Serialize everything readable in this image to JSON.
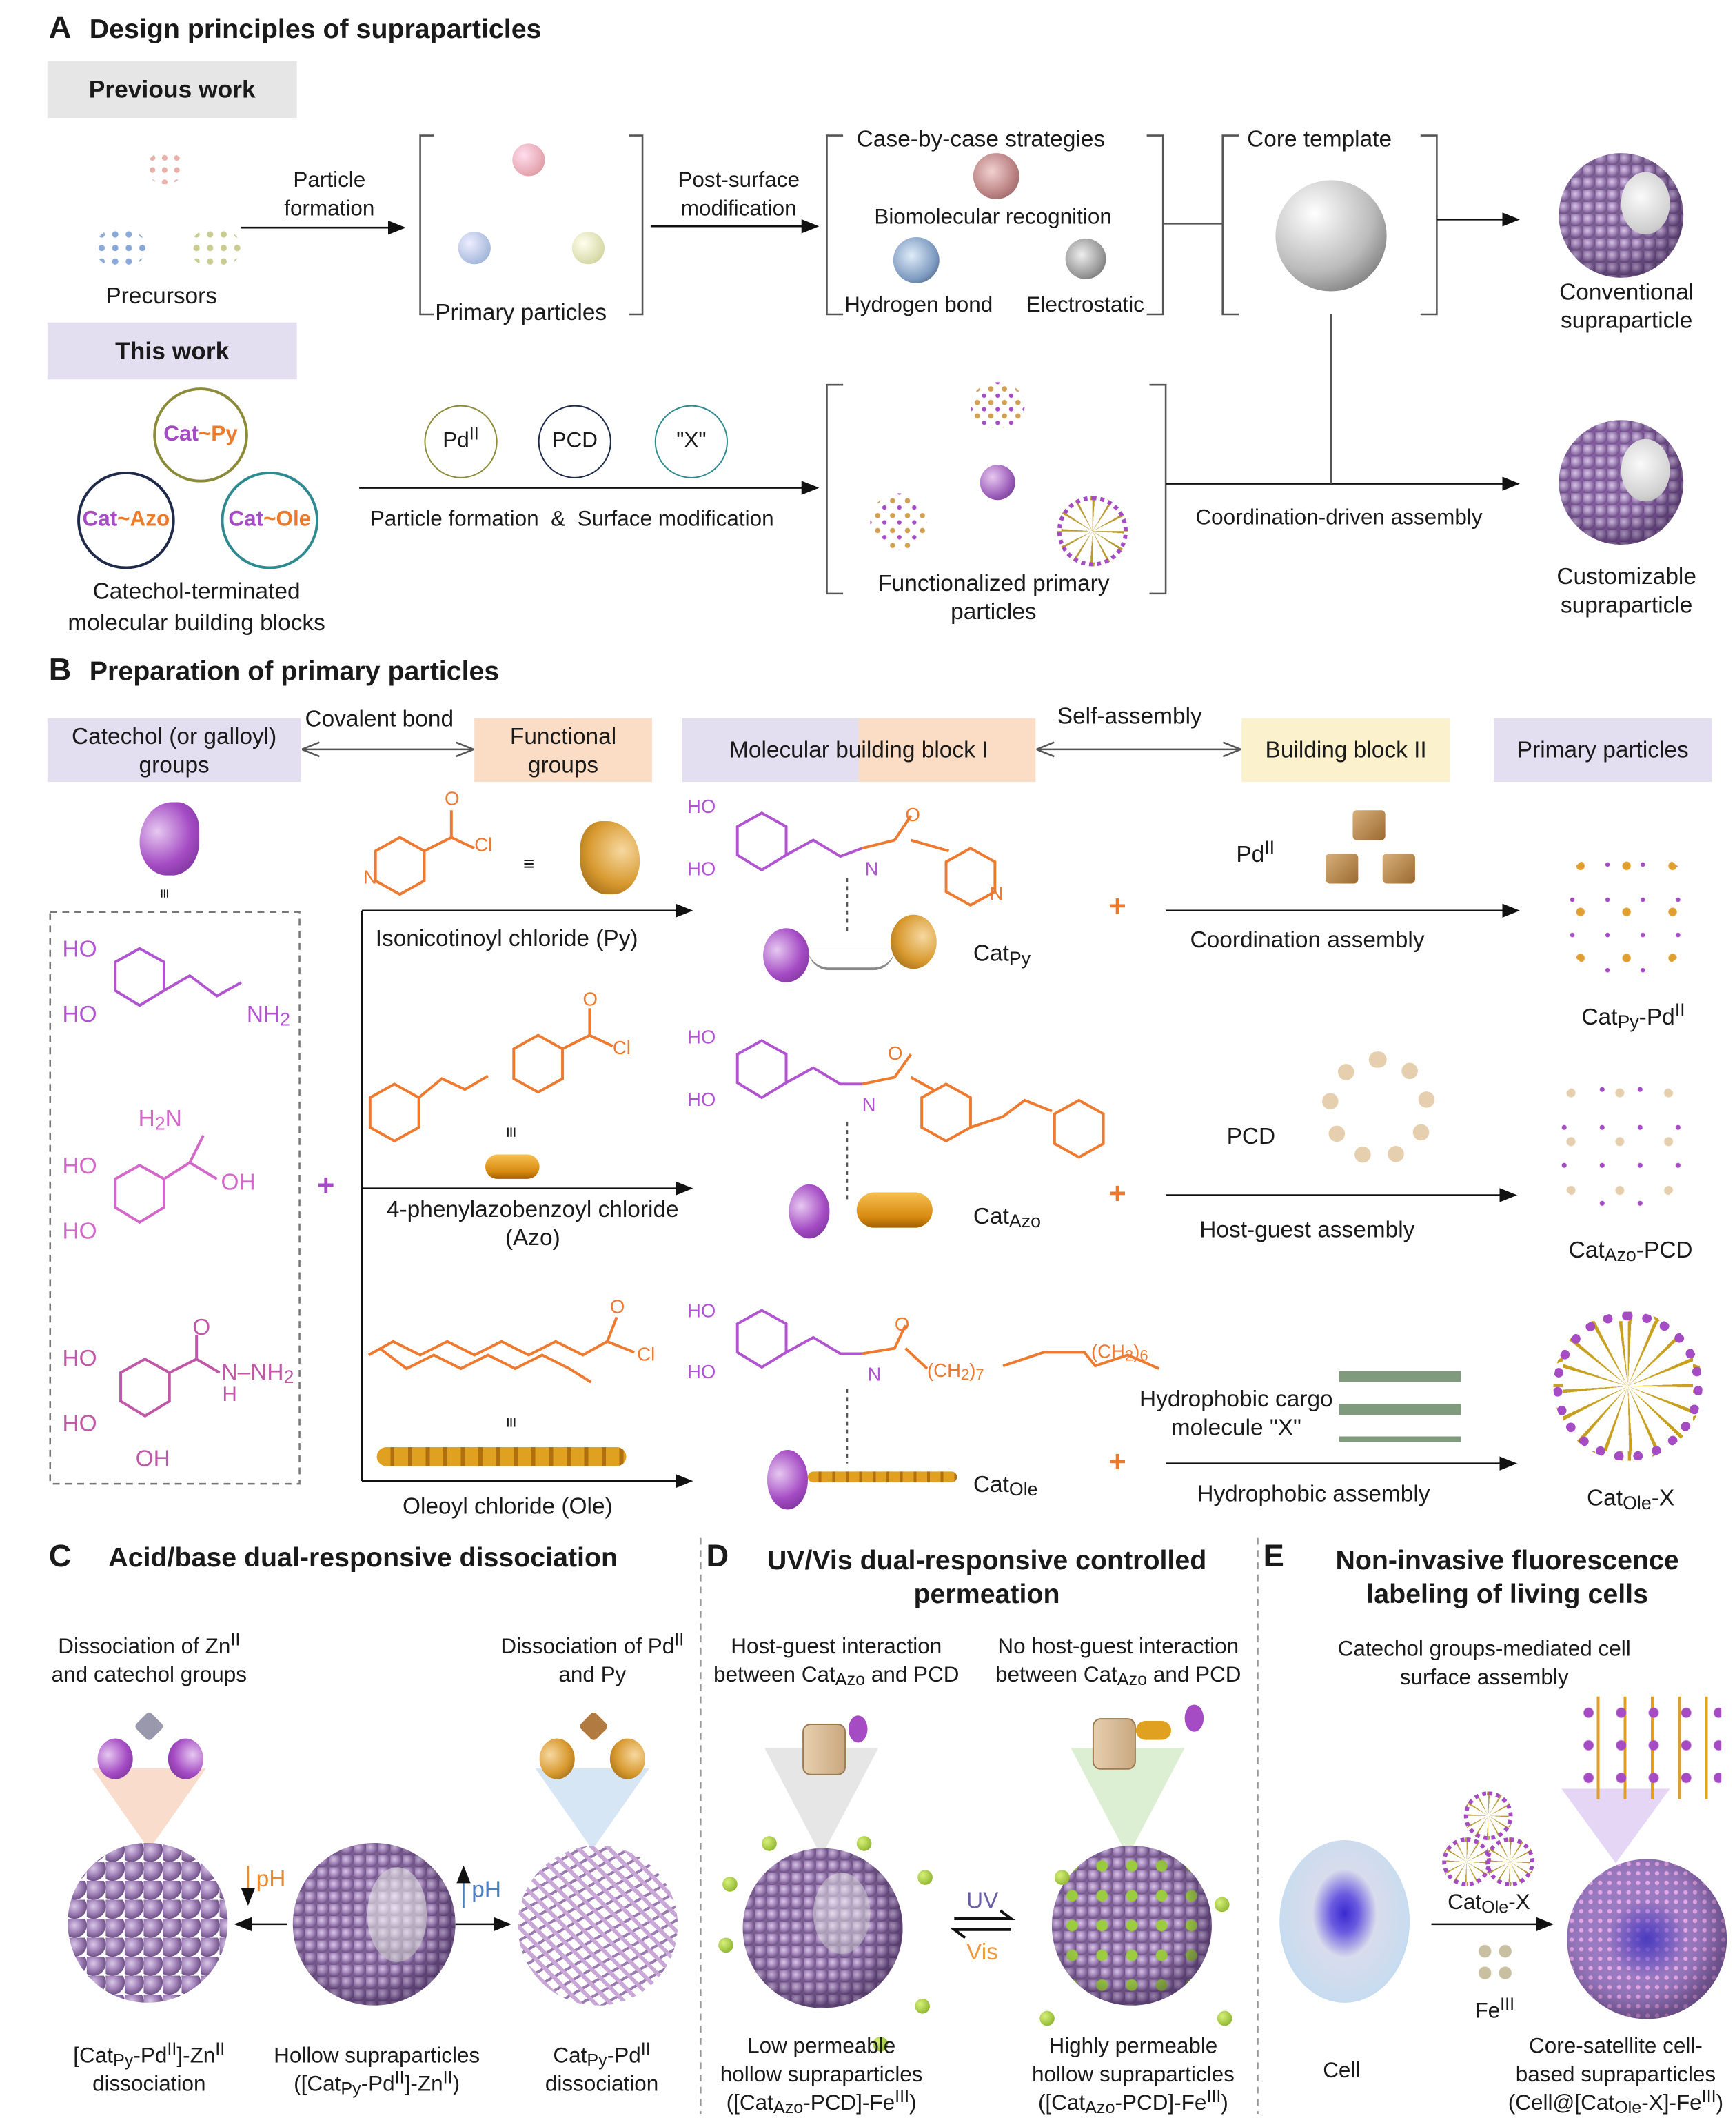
{
  "colors": {
    "purple": "#a54cc4",
    "orange": "#ec7a2c",
    "lavender": "#e3dff0",
    "peach": "#fbdcc4",
    "cream": "#fbf1cc",
    "gray_box": "#e6e6e6",
    "olive": "#8b8b3a",
    "navy": "#1f2a4a",
    "teal": "#2f8a8f",
    "uv": "#6b5ea8",
    "vis": "#ec9a40",
    "ph_down": "#ec8a30",
    "ph_up": "#4a7fc1"
  },
  "panelA": {
    "letter": "A",
    "title": "Design principles of supraparticles",
    "previous_work": "Previous work",
    "this_work": "This work",
    "precursors": "Precursors",
    "particle_formation": [
      "Particle",
      "formation"
    ],
    "primary_particles": "Primary particles",
    "post_surface": [
      "Post-surface",
      "modification"
    ],
    "case_by_case": "Case-by-case strategies",
    "biomolecular": "Biomolecular recognition",
    "hydrogen_bond": "Hydrogen bond",
    "electrostatic": "Electrostatic",
    "core_template": "Core template",
    "conventional": [
      "Conventional",
      "supraparticle"
    ],
    "blocks": {
      "py": [
        "Cat",
        "~",
        "Py"
      ],
      "azo": [
        "Cat",
        "~",
        "Azo"
      ],
      "ole": [
        "Cat",
        "~",
        "Ole"
      ]
    },
    "block_caption": [
      "Catechol-terminated",
      "molecular building blocks"
    ],
    "reagents": [
      "Pd^{II}",
      "PCD",
      "\"X\""
    ],
    "formation_modification": "Particle formation  &  Surface modification",
    "functionalized": [
      "Functionalized primary",
      "particles"
    ],
    "coordination_driven": "Coordination-driven assembly",
    "customizable": [
      "Customizable",
      "supraparticle"
    ]
  },
  "panelB": {
    "letter": "B",
    "title": "Preparation of primary particles",
    "headers": {
      "catechol": [
        "Catechol (or galloyl)",
        "groups"
      ],
      "covalent": "Covalent bond",
      "functional": [
        "Functional",
        "groups"
      ],
      "mbb1": "Molecular building block I",
      "self_assembly": "Self-assembly",
      "bb2": "Building block II",
      "primary": "Primary particles"
    },
    "equiv": "≡",
    "plus": "+",
    "chem_labels": {
      "ho": "HO",
      "nh2": "NH_{2}",
      "h2n": "H_{2}N",
      "oh": "OH",
      "nhnh2": "N–NH_{2}",
      "h": "H",
      "n": "N",
      "o": "O",
      "cl": "Cl",
      "ch2_7": "(CH_{2})_{7}",
      "ch2_6": "(CH_{2})_{6}"
    },
    "rows": [
      {
        "reagent": "Isonicotinoyl chloride (Py)",
        "product": "Cat_{Py}",
        "partner": "Pd^{II}",
        "assembly": "Coordination assembly",
        "result": "Cat_{Py}-Pd^{II}"
      },
      {
        "reagent": [
          "4-phenylazobenzoyl chloride",
          "(Azo)"
        ],
        "product": "Cat_{Azo}",
        "partner": "PCD",
        "assembly": "Host-guest assembly",
        "result": "Cat_{Azo}-PCD"
      },
      {
        "reagent": "Oleoyl chloride (Ole)",
        "product": "Cat_{Ole}",
        "partner": [
          "Hydrophobic cargo",
          "molecule \"X\""
        ],
        "assembly": "Hydrophobic assembly",
        "result": "Cat_{Ole}-X"
      }
    ]
  },
  "panelC": {
    "letter": "C",
    "title": "Acid/base dual-responsive dissociation",
    "left_top": [
      "Dissociation of Zn^{II}",
      "and catechol groups"
    ],
    "right_top": [
      "Dissociation of Pd^{II}",
      "and Py"
    ],
    "ph": "pH",
    "left_bottom": [
      "[Cat_{Py}-Pd^{II}]-Zn^{II}",
      "dissociation"
    ],
    "mid_bottom": [
      "Hollow supraparticles",
      "([Cat_{Py}-Pd^{II}]-Zn^{II})"
    ],
    "right_bottom": [
      "Cat_{Py}-Pd^{II}",
      "dissociation"
    ]
  },
  "panelD": {
    "letter": "D",
    "title": [
      "UV/Vis dual-responsive controlled",
      "permeation"
    ],
    "left_top": [
      "Host-guest interaction",
      "between Cat_{Azo} and PCD"
    ],
    "right_top": [
      "No host-guest interaction",
      "between Cat_{Azo} and PCD"
    ],
    "uv": "UV",
    "vis": "Vis",
    "left_bottom": [
      "Low permeable",
      "hollow supraparticles",
      "([Cat_{Azo}-PCD]-Fe^{III})"
    ],
    "right_bottom": [
      "Highly permeable",
      "hollow supraparticles",
      "([Cat_{Azo}-PCD]-Fe^{III})"
    ]
  },
  "panelE": {
    "letter": "E",
    "title": [
      "Non-invasive fluorescence",
      "labeling of living cells"
    ],
    "top": [
      "Catechol groups-mediated cell",
      "surface assembly"
    ],
    "cat_ole_x": "Cat_{Ole}-X",
    "fe": "Fe^{III}",
    "cell": "Cell",
    "bottom": [
      "Core-satellite cell-",
      "based supraparticles",
      "(Cell@[Cat_{Ole}-X]-Fe^{III})"
    ]
  }
}
